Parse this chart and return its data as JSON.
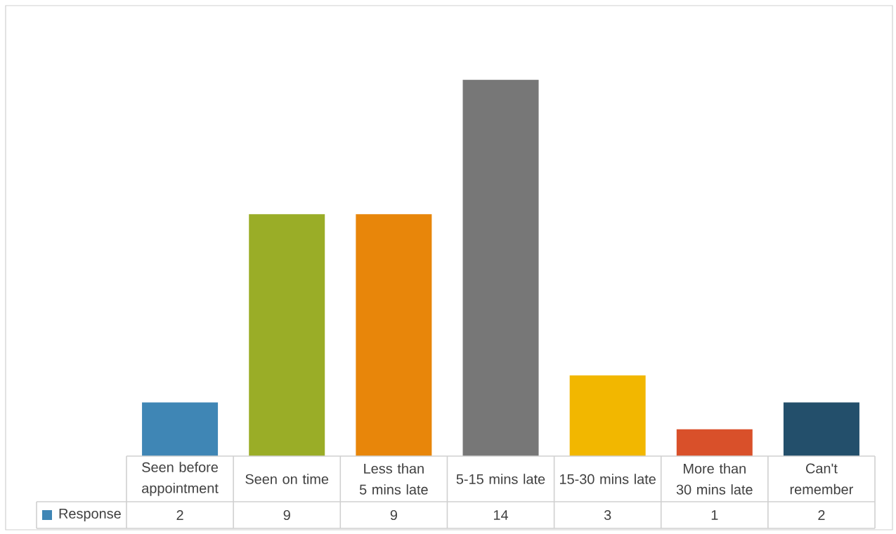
{
  "chart_data": {
    "type": "bar",
    "categories": [
      "Seen before appointment",
      "Seen on time",
      "Less than 5 mins late",
      "5-15 mins late",
      "15-30 mins late",
      "More than 30 mins late",
      "Can't remember"
    ],
    "series": [
      {
        "name": "Response",
        "colors": [
          "#3f86b5",
          "#9aad27",
          "#e8860a",
          "#777777",
          "#f2b700",
          "#d9502a",
          "#234f6b"
        ],
        "values": [
          2,
          9,
          9,
          14,
          3,
          1,
          2
        ]
      }
    ],
    "data_labels": true,
    "legend": "left"
  }
}
